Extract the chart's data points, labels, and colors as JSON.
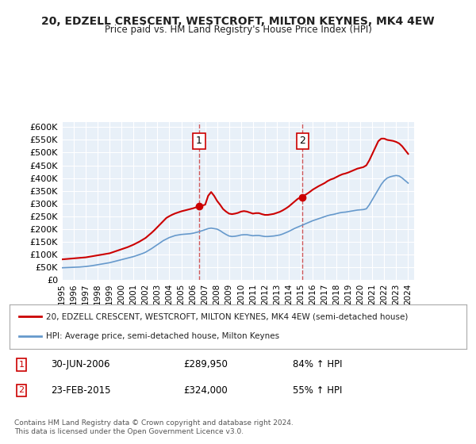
{
  "title": "20, EDZELL CRESCENT, WESTCROFT, MILTON KEYNES, MK4 4EW",
  "subtitle": "Price paid vs. HM Land Registry's House Price Index (HPI)",
  "background_color": "#ffffff",
  "plot_bg_color": "#e8f0f8",
  "grid_color": "#ffffff",
  "ylim": [
    0,
    620000
  ],
  "yticks": [
    0,
    50000,
    100000,
    150000,
    200000,
    250000,
    300000,
    350000,
    400000,
    450000,
    500000,
    550000,
    600000
  ],
  "ytick_labels": [
    "£0",
    "£50K",
    "£100K",
    "£150K",
    "£200K",
    "£250K",
    "£300K",
    "£350K",
    "£400K",
    "£450K",
    "£500K",
    "£550K",
    "£600K"
  ],
  "sale1_date": "30-JUN-2006",
  "sale1_price": 289950,
  "sale1_year": 2006.5,
  "sale1_pct": "84%",
  "sale2_date": "23-FEB-2015",
  "sale2_price": 324000,
  "sale2_year": 2015.15,
  "sale2_pct": "55%",
  "red_line_color": "#cc0000",
  "blue_line_color": "#6699cc",
  "dot_color": "#cc0000",
  "vline_color": "#cc3333",
  "legend_line1": "20, EDZELL CRESCENT, WESTCROFT, MILTON KEYNES, MK4 4EW (semi-detached house)",
  "legend_line2": "HPI: Average price, semi-detached house, Milton Keynes",
  "footnote": "Contains HM Land Registry data © Crown copyright and database right 2024.\nThis data is licensed under the Open Government Licence v3.0.",
  "xmin": 1995.0,
  "xmax": 2024.5,
  "xticks": [
    1995,
    1996,
    1997,
    1998,
    1999,
    2000,
    2001,
    2002,
    2003,
    2004,
    2005,
    2006,
    2007,
    2008,
    2009,
    2010,
    2011,
    2012,
    2013,
    2014,
    2015,
    2016,
    2017,
    2018,
    2019,
    2020,
    2021,
    2022,
    2023,
    2024
  ],
  "hpi_x": [
    1995.0,
    1995.25,
    1995.5,
    1995.75,
    1996.0,
    1996.25,
    1996.5,
    1996.75,
    1997.0,
    1997.25,
    1997.5,
    1997.75,
    1998.0,
    1998.25,
    1998.5,
    1998.75,
    1999.0,
    1999.25,
    1999.5,
    1999.75,
    2000.0,
    2000.25,
    2000.5,
    2000.75,
    2001.0,
    2001.25,
    2001.5,
    2001.75,
    2002.0,
    2002.25,
    2002.5,
    2002.75,
    2003.0,
    2003.25,
    2003.5,
    2003.75,
    2004.0,
    2004.25,
    2004.5,
    2004.75,
    2005.0,
    2005.25,
    2005.5,
    2005.75,
    2006.0,
    2006.25,
    2006.5,
    2006.75,
    2007.0,
    2007.25,
    2007.5,
    2007.75,
    2008.0,
    2008.25,
    2008.5,
    2008.75,
    2009.0,
    2009.25,
    2009.5,
    2009.75,
    2010.0,
    2010.25,
    2010.5,
    2010.75,
    2011.0,
    2011.25,
    2011.5,
    2011.75,
    2012.0,
    2012.25,
    2012.5,
    2012.75,
    2013.0,
    2013.25,
    2013.5,
    2013.75,
    2014.0,
    2014.25,
    2014.5,
    2014.75,
    2015.0,
    2015.25,
    2015.5,
    2015.75,
    2016.0,
    2016.25,
    2016.5,
    2016.75,
    2017.0,
    2017.25,
    2017.5,
    2017.75,
    2018.0,
    2018.25,
    2018.5,
    2018.75,
    2019.0,
    2019.25,
    2019.5,
    2019.75,
    2020.0,
    2020.25,
    2020.5,
    2020.75,
    2021.0,
    2021.25,
    2021.5,
    2021.75,
    2022.0,
    2022.25,
    2022.5,
    2022.75,
    2023.0,
    2023.25,
    2023.5,
    2023.75,
    2024.0
  ],
  "hpi_y": [
    47000,
    47500,
    48000,
    48500,
    49000,
    49500,
    50000,
    51000,
    52000,
    53500,
    55000,
    57000,
    59000,
    61000,
    63000,
    65000,
    67000,
    70000,
    73000,
    76000,
    79000,
    82000,
    85000,
    88000,
    91000,
    95000,
    99000,
    103000,
    108000,
    115000,
    122000,
    130000,
    138000,
    146000,
    154000,
    160000,
    166000,
    170000,
    174000,
    176000,
    178000,
    179000,
    180000,
    181000,
    183000,
    186000,
    189000,
    193000,
    197000,
    201000,
    203000,
    201000,
    199000,
    193000,
    185000,
    178000,
    172000,
    170000,
    171000,
    173000,
    176000,
    177000,
    177000,
    175000,
    173000,
    174000,
    174000,
    172000,
    170000,
    170000,
    171000,
    172000,
    174000,
    176000,
    180000,
    185000,
    190000,
    196000,
    202000,
    207000,
    212000,
    217000,
    222000,
    227000,
    232000,
    236000,
    240000,
    244000,
    248000,
    252000,
    255000,
    257000,
    260000,
    263000,
    265000,
    266000,
    268000,
    270000,
    272000,
    274000,
    275000,
    276000,
    279000,
    295000,
    315000,
    335000,
    355000,
    375000,
    390000,
    400000,
    405000,
    408000,
    410000,
    408000,
    400000,
    390000,
    380000
  ],
  "red_x": [
    1995.0,
    1995.25,
    1995.5,
    1995.75,
    1996.0,
    1996.25,
    1996.5,
    1996.75,
    1997.0,
    1997.25,
    1997.5,
    1997.75,
    1998.0,
    1998.25,
    1998.5,
    1998.75,
    1999.0,
    1999.25,
    1999.5,
    1999.75,
    2000.0,
    2000.25,
    2000.5,
    2000.75,
    2001.0,
    2001.25,
    2001.5,
    2001.75,
    2002.0,
    2002.25,
    2002.5,
    2002.75,
    2003.0,
    2003.25,
    2003.5,
    2003.75,
    2004.0,
    2004.25,
    2004.5,
    2004.75,
    2005.0,
    2005.25,
    2005.5,
    2005.75,
    2006.0,
    2006.25,
    2006.5,
    2006.75,
    2007.0,
    2007.25,
    2007.5,
    2007.75,
    2008.0,
    2008.25,
    2008.5,
    2008.75,
    2009.0,
    2009.25,
    2009.5,
    2009.75,
    2010.0,
    2010.25,
    2010.5,
    2010.75,
    2011.0,
    2011.25,
    2011.5,
    2011.75,
    2012.0,
    2012.25,
    2012.5,
    2012.75,
    2013.0,
    2013.25,
    2013.5,
    2013.75,
    2014.0,
    2014.25,
    2014.5,
    2014.75,
    2015.0,
    2015.25,
    2015.5,
    2015.75,
    2016.0,
    2016.25,
    2016.5,
    2016.75,
    2017.0,
    2017.25,
    2017.5,
    2017.75,
    2018.0,
    2018.25,
    2018.5,
    2018.75,
    2019.0,
    2019.25,
    2019.5,
    2019.75,
    2020.0,
    2020.25,
    2020.5,
    2020.75,
    2021.0,
    2021.25,
    2021.5,
    2021.75,
    2022.0,
    2022.25,
    2022.5,
    2022.75,
    2023.0,
    2023.25,
    2023.5,
    2023.75,
    2024.0
  ],
  "red_y": [
    80000,
    81000,
    82000,
    83000,
    84000,
    85000,
    86000,
    87000,
    88000,
    90000,
    92000,
    94000,
    96000,
    98000,
    100000,
    102000,
    104000,
    108000,
    112000,
    116000,
    120000,
    124000,
    128000,
    133000,
    138000,
    144000,
    150000,
    157000,
    164000,
    174000,
    184000,
    195000,
    207000,
    219000,
    231000,
    243000,
    250000,
    256000,
    261000,
    265000,
    269000,
    272000,
    275000,
    278000,
    281000,
    285000,
    289950,
    292000,
    295000,
    330000,
    345000,
    330000,
    310000,
    295000,
    278000,
    268000,
    260000,
    258000,
    260000,
    263000,
    268000,
    270000,
    268000,
    264000,
    260000,
    262000,
    262000,
    258000,
    255000,
    255000,
    257000,
    259000,
    263000,
    267000,
    273000,
    280000,
    288000,
    298000,
    308000,
    318000,
    324000,
    330000,
    337000,
    345000,
    354000,
    361000,
    368000,
    374000,
    380000,
    388000,
    394000,
    398000,
    404000,
    410000,
    415000,
    418000,
    422000,
    427000,
    432000,
    437000,
    440000,
    443000,
    450000,
    470000,
    495000,
    520000,
    545000,
    555000,
    555000,
    550000,
    548000,
    546000,
    542000,
    536000,
    525000,
    510000,
    495000
  ]
}
